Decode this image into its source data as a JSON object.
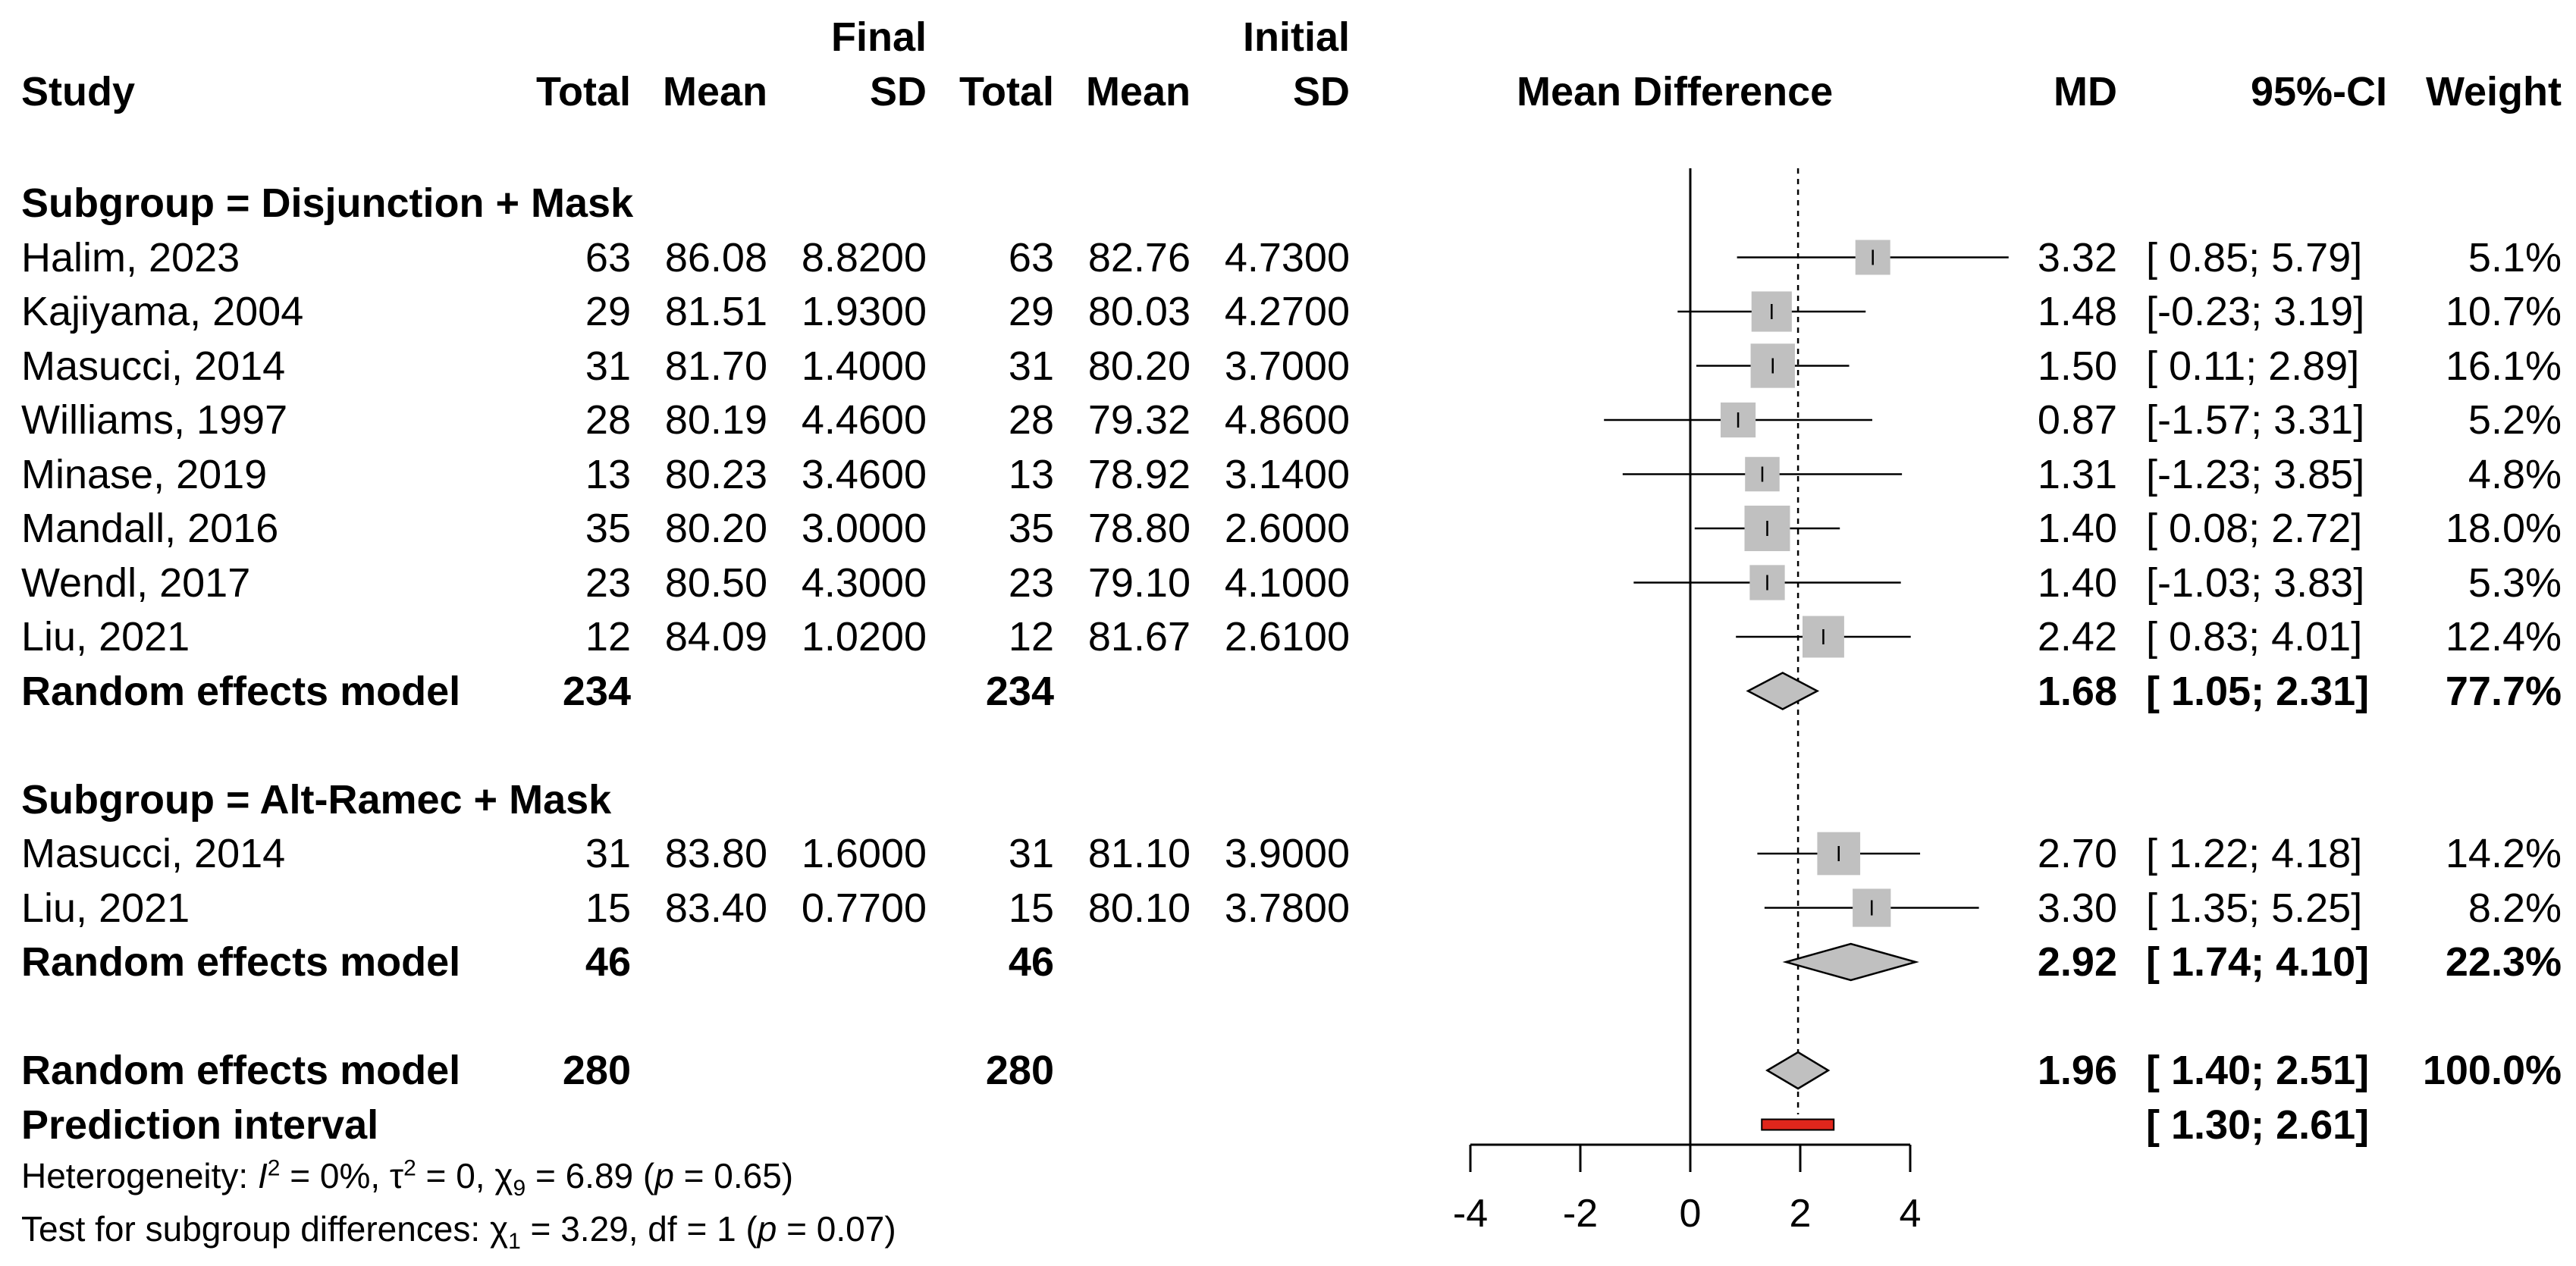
{
  "chart_data": {
    "type": "forest",
    "title": "",
    "columns": {
      "study": "Study",
      "final_group": "Final",
      "initial_group": "Initial",
      "total": "Total",
      "mean": "Mean",
      "sd": "SD",
      "plot": "Mean Difference",
      "md": "MD",
      "ci": "95%-CI",
      "weight": "Weight"
    },
    "xaxis": {
      "ticks": [
        -4,
        -2,
        0,
        2,
        4
      ],
      "range": [
        -4,
        4
      ],
      "reference_line": 0,
      "pooled_line": 1.96
    },
    "rows": [
      {
        "kind": "subgroup",
        "label": "Subgroup = Disjunction + Mask"
      },
      {
        "kind": "study",
        "study": "Halim, 2023",
        "f_total": "63",
        "f_mean": "86.08",
        "f_sd": "8.8200",
        "i_total": "63",
        "i_mean": "82.76",
        "i_sd": "4.7300",
        "md": 3.32,
        "lo": 0.85,
        "hi": 5.79,
        "md_text": "3.32",
        "ci_text": "[ 0.85; 5.79]",
        "weight_text": "5.1%",
        "weight": 5.1
      },
      {
        "kind": "study",
        "study": "Kajiyama, 2004",
        "f_total": "29",
        "f_mean": "81.51",
        "f_sd": "1.9300",
        "i_total": "29",
        "i_mean": "80.03",
        "i_sd": "4.2700",
        "md": 1.48,
        "lo": -0.23,
        "hi": 3.19,
        "md_text": "1.48",
        "ci_text": "[-0.23; 3.19]",
        "weight_text": "10.7%",
        "weight": 10.7
      },
      {
        "kind": "study",
        "study": "Masucci, 2014",
        "f_total": "31",
        "f_mean": "81.70",
        "f_sd": "1.4000",
        "i_total": "31",
        "i_mean": "80.20",
        "i_sd": "3.7000",
        "md": 1.5,
        "lo": 0.11,
        "hi": 2.89,
        "md_text": "1.50",
        "ci_text": "[ 0.11; 2.89]",
        "weight_text": "16.1%",
        "weight": 16.1
      },
      {
        "kind": "study",
        "study": "Williams, 1997",
        "f_total": "28",
        "f_mean": "80.19",
        "f_sd": "4.4600",
        "i_total": "28",
        "i_mean": "79.32",
        "i_sd": "4.8600",
        "md": 0.87,
        "lo": -1.57,
        "hi": 3.31,
        "md_text": "0.87",
        "ci_text": "[-1.57; 3.31]",
        "weight_text": "5.2%",
        "weight": 5.2
      },
      {
        "kind": "study",
        "study": "Minase, 2019",
        "f_total": "13",
        "f_mean": "80.23",
        "f_sd": "3.4600",
        "i_total": "13",
        "i_mean": "78.92",
        "i_sd": "3.1400",
        "md": 1.31,
        "lo": -1.23,
        "hi": 3.85,
        "md_text": "1.31",
        "ci_text": "[-1.23; 3.85]",
        "weight_text": "4.8%",
        "weight": 4.8
      },
      {
        "kind": "study",
        "study": "Mandall, 2016",
        "f_total": "35",
        "f_mean": "80.20",
        "f_sd": "3.0000",
        "i_total": "35",
        "i_mean": "78.80",
        "i_sd": "2.6000",
        "md": 1.4,
        "lo": 0.08,
        "hi": 2.72,
        "md_text": "1.40",
        "ci_text": "[ 0.08; 2.72]",
        "weight_text": "18.0%",
        "weight": 18.0
      },
      {
        "kind": "study",
        "study": "Wendl, 2017",
        "f_total": "23",
        "f_mean": "80.50",
        "f_sd": "4.3000",
        "i_total": "23",
        "i_mean": "79.10",
        "i_sd": "4.1000",
        "md": 1.4,
        "lo": -1.03,
        "hi": 3.83,
        "md_text": "1.40",
        "ci_text": "[-1.03; 3.83]",
        "weight_text": "5.3%",
        "weight": 5.3
      },
      {
        "kind": "study",
        "study": "Liu, 2021",
        "f_total": "12",
        "f_mean": "84.09",
        "f_sd": "1.0200",
        "i_total": "12",
        "i_mean": "81.67",
        "i_sd": "2.6100",
        "md": 2.42,
        "lo": 0.83,
        "hi": 4.01,
        "md_text": "2.42",
        "ci_text": "[ 0.83; 4.01]",
        "weight_text": "12.4%",
        "weight": 12.4
      },
      {
        "kind": "pooled",
        "study": "Random effects model",
        "f_total": "234",
        "i_total": "234",
        "md": 1.68,
        "lo": 1.05,
        "hi": 2.31,
        "md_text": "1.68",
        "ci_text": "[ 1.05; 2.31]",
        "weight_text": "77.7%"
      },
      {
        "kind": "blank"
      },
      {
        "kind": "subgroup",
        "label": "Subgroup = Alt-Ramec + Mask"
      },
      {
        "kind": "study",
        "study": "Masucci, 2014",
        "f_total": "31",
        "f_mean": "83.80",
        "f_sd": "1.6000",
        "i_total": "31",
        "i_mean": "81.10",
        "i_sd": "3.9000",
        "md": 2.7,
        "lo": 1.22,
        "hi": 4.18,
        "md_text": "2.70",
        "ci_text": "[ 1.22; 4.18]",
        "weight_text": "14.2%",
        "weight": 14.2
      },
      {
        "kind": "study",
        "study": "Liu, 2021",
        "f_total": "15",
        "f_mean": "83.40",
        "f_sd": "0.7700",
        "i_total": "15",
        "i_mean": "80.10",
        "i_sd": "3.7800",
        "md": 3.3,
        "lo": 1.35,
        "hi": 5.25,
        "md_text": "3.30",
        "ci_text": "[ 1.35; 5.25]",
        "weight_text": "8.2%",
        "weight": 8.2
      },
      {
        "kind": "pooled",
        "study": "Random effects model",
        "f_total": "46",
        "i_total": "46",
        "md": 2.92,
        "lo": 1.74,
        "hi": 4.1,
        "md_text": "2.92",
        "ci_text": "[ 1.74; 4.10]",
        "weight_text": "22.3%"
      },
      {
        "kind": "blank"
      },
      {
        "kind": "pooled",
        "study": "Random effects model",
        "f_total": "280",
        "i_total": "280",
        "md": 1.96,
        "lo": 1.4,
        "hi": 2.51,
        "md_text": "1.96",
        "ci_text": "[ 1.40; 2.51]",
        "weight_text": "100.0%"
      },
      {
        "kind": "prediction",
        "study": "Prediction interval",
        "lo": 1.3,
        "hi": 2.61,
        "ci_text": "[ 1.30; 2.61]"
      }
    ],
    "heterogeneity": {
      "prefix": "Heterogeneity: ",
      "i2": "0%",
      "tau2": "0",
      "chi_df": "9",
      "chi": "6.89",
      "p": "0.65"
    },
    "subgroup_test": {
      "prefix": "Test for subgroup differences: ",
      "chi_df": "1",
      "chi": "3.29",
      "df": "1",
      "p": "0.07"
    }
  },
  "colors": {
    "box": "#c0c0c0",
    "diamond": "#c0c0c0",
    "prediction": "#e0261c",
    "line": "#000000"
  }
}
